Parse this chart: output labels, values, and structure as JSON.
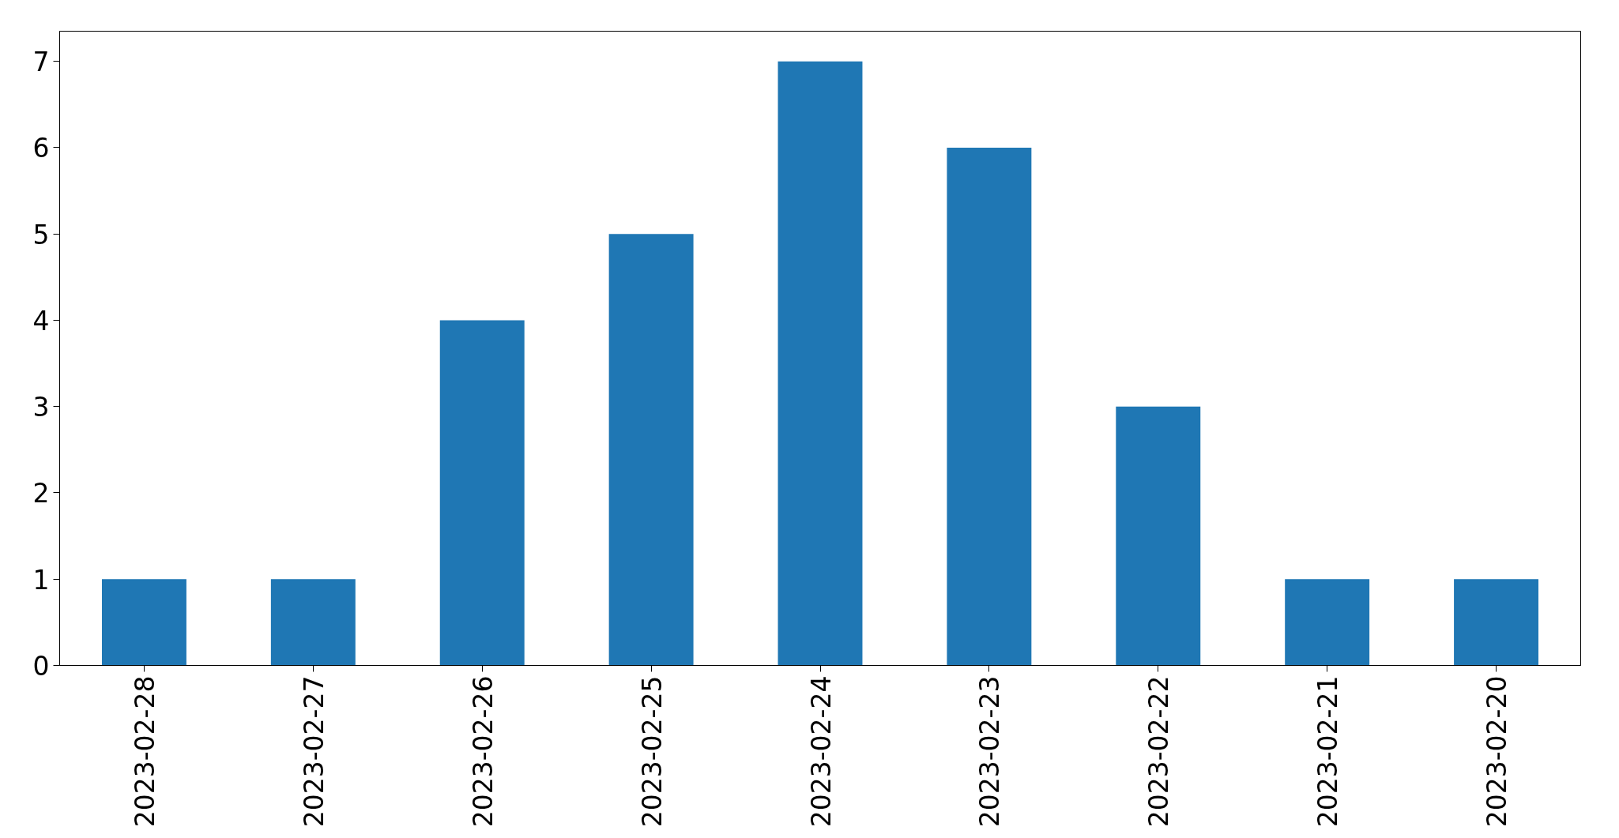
{
  "chart_data": {
    "type": "bar",
    "categories": [
      "2023-02-28",
      "2023-02-27",
      "2023-02-26",
      "2023-02-25",
      "2023-02-24",
      "2023-02-23",
      "2023-02-22",
      "2023-02-21",
      "2023-02-20"
    ],
    "values": [
      1,
      1,
      4,
      5,
      7,
      6,
      3,
      1,
      1
    ],
    "color": "#1f77b4",
    "ylim": [
      0,
      7.35
    ],
    "yticks": [
      0,
      1,
      2,
      3,
      4,
      5,
      6,
      7
    ],
    "grid": false
  }
}
